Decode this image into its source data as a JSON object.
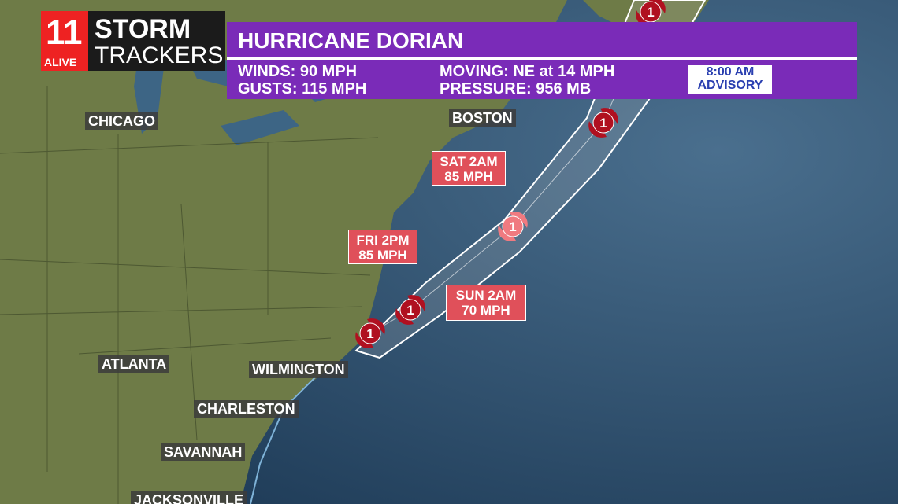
{
  "logo": {
    "number": "11",
    "station": "ALIVE",
    "line1": "STORM",
    "line2": "TRACKERS"
  },
  "header": {
    "title": "HURRICANE DORIAN",
    "stats": [
      "WINDS: 90 MPH",
      "MOVING: NE at 14 MPH",
      "GUSTS: 115 MPH",
      "PRESSURE: 956 MB"
    ],
    "advisory": [
      "8:00 AM",
      "ADVISORY"
    ]
  },
  "cities": [
    "CHICAGO",
    "BOSTON",
    "ATLANTA",
    "WILMINGTON",
    "CHARLESTON",
    "SAVANNAH",
    "JACKSONVILLE"
  ],
  "forecasts": [
    {
      "time": "SAT 2AM",
      "wind": "85 MPH"
    },
    {
      "time": "FRI 2PM",
      "wind": "85 MPH"
    },
    {
      "time": "SUN 2AM",
      "wind": "70 MPH"
    }
  ],
  "storm_markers": [
    "1",
    "1",
    "1",
    "1",
    "1"
  ]
}
